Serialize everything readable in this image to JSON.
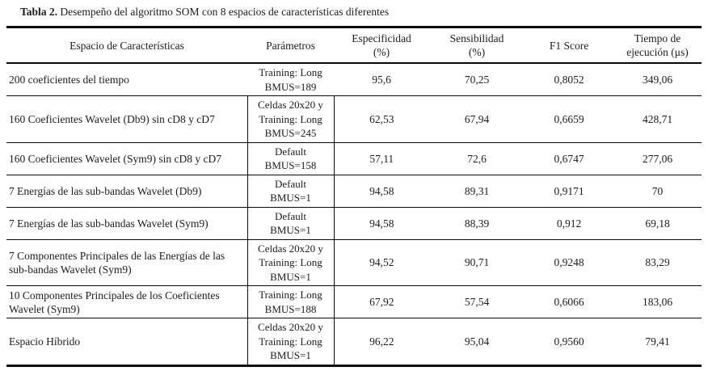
{
  "caption": {
    "label": "Tabla 2.",
    "text": " Desempeño del algoritmo SOM con 8 espacios de características diferentes"
  },
  "table": {
    "columns": [
      {
        "label": "Espacio de Características"
      },
      {
        "label": "Parámetros"
      },
      {
        "label": "Especificidad",
        "sub": "(%)"
      },
      {
        "label": "Sensibilidad",
        "sub": "(%)"
      },
      {
        "label": "F1 Score"
      },
      {
        "label": "Tiempo de",
        "sub": "ejecución (μs)"
      }
    ],
    "rows": [
      {
        "espacio": "200 coeficientes del tiempo",
        "parametros": [
          "Training: Long",
          "BMUS=189"
        ],
        "param_border": false,
        "especificidad": "95,6",
        "sensibilidad": "70,25",
        "f1": "0,8052",
        "tiempo": "349,06"
      },
      {
        "espacio": "160 Coeficientes Wavelet (Db9) sin cD8 y cD7",
        "parametros": [
          "Celdas 20x20 y",
          "Training: Long",
          "BMUS=245"
        ],
        "param_border": true,
        "especificidad": "62,53",
        "sensibilidad": "67,94",
        "f1": "0,6659",
        "tiempo": "428,71"
      },
      {
        "espacio": "160 Coeficientes Wavelet (Sym9) sin cD8 y cD7",
        "parametros": [
          "Default",
          "BMUS=158"
        ],
        "param_border": true,
        "especificidad": "57,11",
        "sensibilidad": "72,6",
        "f1": "0,6747",
        "tiempo": "277,06"
      },
      {
        "espacio": "7 Energías de las sub-bandas Wavelet (Db9)",
        "parametros": [
          "Default",
          "BMUS=1"
        ],
        "param_border": true,
        "especificidad": "94,58",
        "sensibilidad": "89,31",
        "f1": "0,9171",
        "tiempo": "70"
      },
      {
        "espacio": "7 Energías de las sub-bandas Wavelet (Sym9)",
        "parametros": [
          "Default",
          "BMUS=1"
        ],
        "param_border": true,
        "especificidad": "94,58",
        "sensibilidad": "88,39",
        "f1": "0,912",
        "tiempo": "69,18"
      },
      {
        "espacio": "7 Componentes Principales de las Energías de las sub-bandas Wavelet (Sym9)",
        "parametros": [
          "Celdas 20x20 y",
          "Training: Long",
          "BMUS=1"
        ],
        "param_border": true,
        "especificidad": "94,52",
        "sensibilidad": "90,71",
        "f1": "0,9248",
        "tiempo": "83,29"
      },
      {
        "espacio": "10 Componentes Principales de los Coeficientes Wavelet (Sym9)",
        "parametros": [
          "Training: Long",
          "BMUS=188"
        ],
        "param_border": true,
        "especificidad": "67,92",
        "sensibilidad": "57,54",
        "f1": "0,6066",
        "tiempo": "183,06"
      },
      {
        "espacio": "Espacio Híbrido",
        "parametros": [
          "Celdas 20x20 y",
          "Training: Long",
          "BMUS=1"
        ],
        "param_border": true,
        "especificidad": "96,22",
        "sensibilidad": "95,04",
        "f1": "0,9560",
        "tiempo": "79,41"
      }
    ]
  }
}
